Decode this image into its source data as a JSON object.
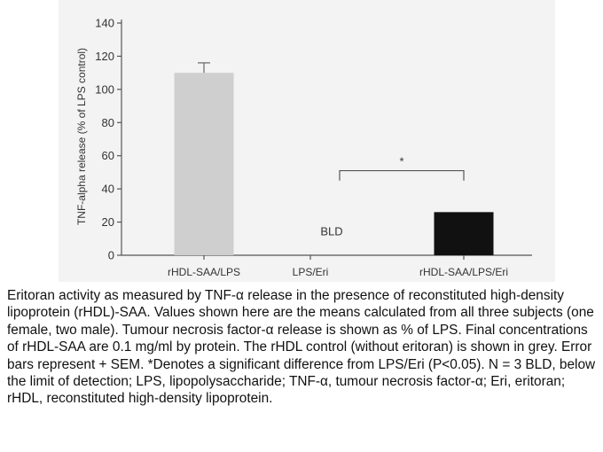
{
  "chart_data": {
    "type": "bar",
    "categories": [
      "rHDL-SAA/LPS",
      "LPS/Eri",
      "rHDL-SAA/LPS/Eri"
    ],
    "values": [
      110,
      null,
      26
    ],
    "errors": [
      6,
      null,
      0
    ],
    "colors": [
      "#cfcfcf",
      "#ffffff",
      "#111111"
    ],
    "ylabel": "TNF-alpha release (% of LPS control)",
    "ylim": [
      0,
      140
    ],
    "yticks": [
      0,
      20,
      40,
      60,
      80,
      100,
      120,
      140
    ],
    "grid": false,
    "annotations": {
      "bld": "BLD",
      "significance": "*"
    }
  },
  "caption": "Eritoran activity as measured by TNF-α release in the presence of reconstituted high-density lipoprotein (rHDL)-SAA. Values shown here are the means calculated from all three subjects (one female, two male). Tumour necrosis factor-α release is shown as % of LPS. Final concentrations of rHDL-SAA are 0.1 mg/ml by protein. The rHDL control (without eritoran) is shown in grey. Error bars represent + SEM. *Denotes a significant difference from LPS/Eri (P<0.05). N = 3 BLD, below the limit of detection; LPS, lipopolysaccharide; TNF-α, tumour necrosis factor-α; Eri, eritoran; rHDL, reconstituted high-density lipoprotein."
}
